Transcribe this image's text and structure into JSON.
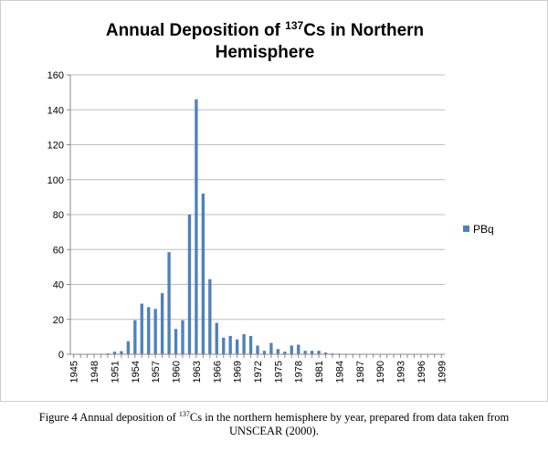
{
  "chart_data": {
    "type": "bar",
    "title": {
      "line1_before": "Annual Deposition of ",
      "line1_sup": "137",
      "line1_after": "Cs in Northern",
      "line2": "Hemisphere"
    },
    "xlabel": "",
    "ylabel": "",
    "ylim": [
      0,
      160
    ],
    "yticks": [
      "0",
      "20",
      "40",
      "60",
      "80",
      "100",
      "120",
      "140",
      "160"
    ],
    "grid": true,
    "legend_position": "right",
    "series": [
      {
        "name": "PBq",
        "color": "#4f81bd",
        "values": [
          0.2,
          0.2,
          0.2,
          0.3,
          0.3,
          0.5,
          1.5,
          1.8,
          7.5,
          19.5,
          29,
          27,
          26,
          35,
          58.5,
          14.5,
          19.5,
          80,
          146,
          92,
          43,
          18,
          9.5,
          10.5,
          8.5,
          11.5,
          10.5,
          5,
          2,
          6.5,
          3,
          1.5,
          5,
          5.5,
          2,
          2,
          2,
          1,
          0.5,
          0.4,
          0.3,
          0.3,
          0.2,
          0.2,
          0.2,
          0.2,
          0.2,
          0.2,
          0.2,
          0.2,
          0.2,
          0.2,
          0.2,
          0.2,
          0.2
        ]
      }
    ],
    "categories": [
      "1945",
      "1946",
      "1947",
      "1948",
      "1949",
      "1950",
      "1951",
      "1952",
      "1953",
      "1954",
      "1955",
      "1956",
      "1957",
      "1958",
      "1959",
      "1960",
      "1961",
      "1962",
      "1963",
      "1964",
      "1965",
      "1966",
      "1967",
      "1968",
      "1969",
      "1970",
      "1971",
      "1972",
      "1973",
      "1974",
      "1975",
      "1976",
      "1977",
      "1978",
      "1979",
      "1980",
      "1981",
      "1982",
      "1983",
      "1984",
      "1985",
      "1986",
      "1987",
      "1988",
      "1989",
      "1990",
      "1991",
      "1992",
      "1993",
      "1994",
      "1995",
      "1996",
      "1997",
      "1998",
      "1999"
    ],
    "tick_labels_shown": [
      "1945",
      "1948",
      "1951",
      "1954",
      "1957",
      "1960",
      "1963",
      "1966",
      "1969",
      "1972",
      "1975",
      "1978",
      "1981",
      "1984",
      "1987",
      "1990",
      "1993",
      "1996",
      "1999"
    ]
  },
  "caption": {
    "before": "Figure 4  Annual deposition of ",
    "sup": "137",
    "after_line1": "Cs in the northern hemisphere by year, prepared from data taken from",
    "line2": "UNSCEAR (2000)."
  }
}
